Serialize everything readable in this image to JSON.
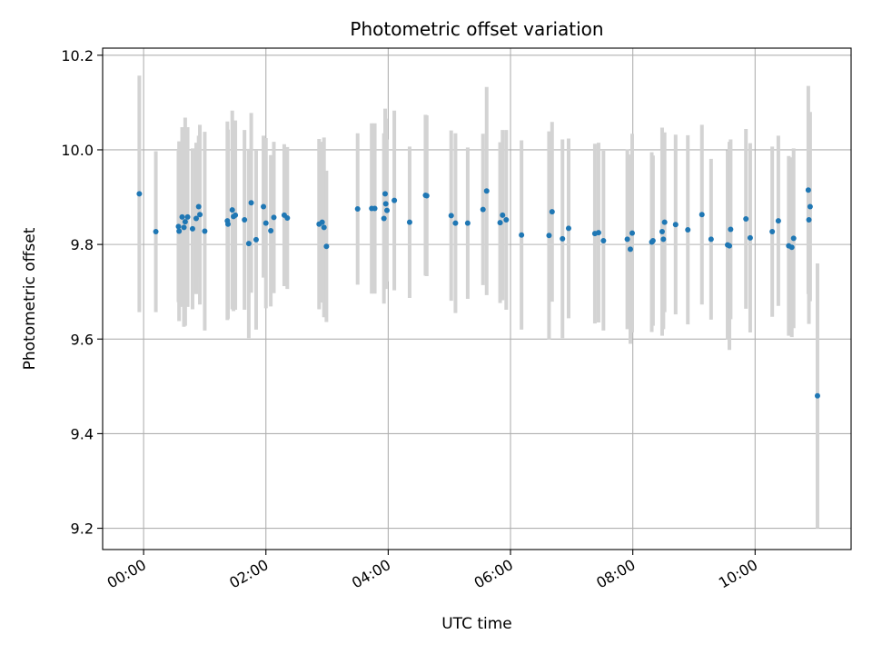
{
  "chart_data": {
    "type": "scatter",
    "title": "Photometric offset variation",
    "xlabel": "UTC time",
    "ylabel": "Photometric offset",
    "xlim": [
      -0.67,
      11.57
    ],
    "ylim": [
      9.155,
      10.215
    ],
    "grid": true,
    "legend": "none",
    "colors": {
      "point": "#1f77b4",
      "errorbar": "#d3d3d3",
      "grid": "#b0b0b0"
    },
    "x_ticks": [
      {
        "value": 0,
        "label": "00:00"
      },
      {
        "value": 2,
        "label": "02:00"
      },
      {
        "value": 4,
        "label": "04:00"
      },
      {
        "value": 6,
        "label": "06:00"
      },
      {
        "value": 8,
        "label": "08:00"
      },
      {
        "value": 10,
        "label": "10:00"
      }
    ],
    "y_ticks": [
      {
        "value": 9.2,
        "label": "9.2"
      },
      {
        "value": 9.4,
        "label": "9.4"
      },
      {
        "value": 9.6,
        "label": "9.6"
      },
      {
        "value": 9.8,
        "label": "9.8"
      },
      {
        "value": 10.0,
        "label": "10.0"
      },
      {
        "value": 10.2,
        "label": "10.2"
      }
    ],
    "series": [
      {
        "name": "offset",
        "points": [
          [
            -0.07,
            9.907,
            0.25
          ],
          [
            0.2,
            9.827,
            0.17
          ],
          [
            0.57,
            9.838,
            0.16
          ],
          [
            0.58,
            9.828,
            0.19
          ],
          [
            0.63,
            9.858,
            0.19
          ],
          [
            0.66,
            9.836,
            0.21
          ],
          [
            0.68,
            9.848,
            0.22
          ],
          [
            0.72,
            9.858,
            0.19
          ],
          [
            0.8,
            9.833,
            0.17
          ],
          [
            0.86,
            9.855,
            0.16
          ],
          [
            0.9,
            9.88,
            0.15
          ],
          [
            0.92,
            9.863,
            0.19
          ],
          [
            1.0,
            9.828,
            0.21
          ],
          [
            1.37,
            9.85,
            0.21
          ],
          [
            1.38,
            9.843,
            0.2
          ],
          [
            1.45,
            9.873,
            0.21
          ],
          [
            1.47,
            9.859,
            0.2
          ],
          [
            1.5,
            9.862,
            0.2
          ],
          [
            1.65,
            9.852,
            0.19
          ],
          [
            1.72,
            9.802,
            0.2
          ],
          [
            1.76,
            9.888,
            0.19
          ],
          [
            1.84,
            9.81,
            0.19
          ],
          [
            1.96,
            9.88,
            0.15
          ],
          [
            2.0,
            9.845,
            0.18
          ],
          [
            2.08,
            9.829,
            0.16
          ],
          [
            2.13,
            9.857,
            0.16
          ],
          [
            2.3,
            9.862,
            0.15
          ],
          [
            2.35,
            9.856,
            0.15
          ],
          [
            2.87,
            9.843,
            0.18
          ],
          [
            2.92,
            9.847,
            0.17
          ],
          [
            2.95,
            9.836,
            0.19
          ],
          [
            2.99,
            9.796,
            0.16
          ],
          [
            3.5,
            9.875,
            0.16
          ],
          [
            3.73,
            9.876,
            0.18
          ],
          [
            3.78,
            9.876,
            0.18
          ],
          [
            3.93,
            9.855,
            0.18
          ],
          [
            3.95,
            9.907,
            0.18
          ],
          [
            3.96,
            9.886,
            0.18
          ],
          [
            3.98,
            9.872,
            0.15
          ],
          [
            4.1,
            9.893,
            0.19
          ],
          [
            4.35,
            9.847,
            0.16
          ],
          [
            4.61,
            9.904,
            0.17
          ],
          [
            4.63,
            9.903,
            0.17
          ],
          [
            5.03,
            9.861,
            0.18
          ],
          [
            5.1,
            9.845,
            0.19
          ],
          [
            5.3,
            9.845,
            0.16
          ],
          [
            5.55,
            9.874,
            0.16
          ],
          [
            5.61,
            9.913,
            0.22
          ],
          [
            5.83,
            9.846,
            0.17
          ],
          [
            5.87,
            9.862,
            0.18
          ],
          [
            5.93,
            9.852,
            0.19
          ],
          [
            6.18,
            9.82,
            0.2
          ],
          [
            6.63,
            9.819,
            0.22
          ],
          [
            6.68,
            9.869,
            0.19
          ],
          [
            6.85,
            9.812,
            0.21
          ],
          [
            6.95,
            9.834,
            0.19
          ],
          [
            7.38,
            9.823,
            0.19
          ],
          [
            7.44,
            9.825,
            0.19
          ],
          [
            7.52,
            9.808,
            0.19
          ],
          [
            7.91,
            9.811,
            0.19
          ],
          [
            7.96,
            9.79,
            0.2
          ],
          [
            7.99,
            9.824,
            0.21
          ],
          [
            8.31,
            9.805,
            0.19
          ],
          [
            8.33,
            9.808,
            0.18
          ],
          [
            8.48,
            9.827,
            0.22
          ],
          [
            8.5,
            9.811,
            0.19
          ],
          [
            8.52,
            9.847,
            0.19
          ],
          [
            8.7,
            9.842,
            0.19
          ],
          [
            8.9,
            9.831,
            0.2
          ],
          [
            9.13,
            9.863,
            0.19
          ],
          [
            9.28,
            9.811,
            0.17
          ],
          [
            9.55,
            9.799,
            0.2
          ],
          [
            9.58,
            9.797,
            0.22
          ],
          [
            9.6,
            9.832,
            0.19
          ],
          [
            9.85,
            9.854,
            0.19
          ],
          [
            9.92,
            9.814,
            0.2
          ],
          [
            10.28,
            9.827,
            0.18
          ],
          [
            10.38,
            9.85,
            0.18
          ],
          [
            10.55,
            9.797,
            0.19
          ],
          [
            10.6,
            9.794,
            0.19
          ],
          [
            10.63,
            9.813,
            0.19
          ],
          [
            10.87,
            9.915,
            0.22
          ],
          [
            10.88,
            9.852,
            0.22
          ],
          [
            10.9,
            9.88,
            0.2
          ],
          [
            11.02,
            9.48,
            0.28
          ]
        ]
      }
    ]
  }
}
